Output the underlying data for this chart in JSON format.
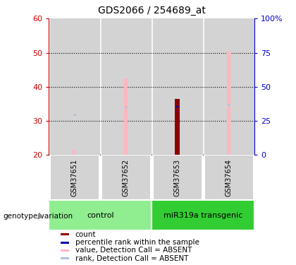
{
  "title": "GDS2066 / 254689_at",
  "samples": [
    "GSM37651",
    "GSM37652",
    "GSM37653",
    "GSM37654"
  ],
  "ylim": [
    20,
    60
  ],
  "y_ticks_left": [
    20,
    30,
    40,
    50,
    60
  ],
  "y_ticks_right": [
    0,
    25,
    50,
    75,
    100
  ],
  "left_axis_color": "#cc0000",
  "right_axis_color": "#0000cc",
  "bars": {
    "GSM37651": {
      "value_absent": 21.5,
      "rank_absent_pct": 29.5,
      "count": null,
      "percentile_pct": null
    },
    "GSM37652": {
      "value_absent": 42.5,
      "rank_absent_pct": 35.0,
      "count": null,
      "percentile_pct": null
    },
    "GSM37653": {
      "value_absent": 36.5,
      "rank_absent_pct": 35.5,
      "count": 36.5,
      "percentile_pct": 35.5
    },
    "GSM37654": {
      "value_absent": 50.5,
      "rank_absent_pct": 37.0,
      "count": null,
      "percentile_pct": null
    }
  },
  "colors": {
    "value_absent": "#ffb6c1",
    "rank_absent": "#b0c4de",
    "count": "#8b0000",
    "percentile": "#0000aa"
  },
  "legend": [
    {
      "label": "count",
      "color": "#8b0000"
    },
    {
      "label": "percentile rank within the sample",
      "color": "#0000aa"
    },
    {
      "label": "value, Detection Call = ABSENT",
      "color": "#ffb6c1"
    },
    {
      "label": "rank, Detection Call = ABSENT",
      "color": "#b0c4de"
    }
  ],
  "xlabel_group": "genotype/variation",
  "sample_area_color": "#d3d3d3",
  "group_control_color": "#90ee90",
  "group_transgenic_color": "#32cd32",
  "x_positions": [
    0,
    1,
    2,
    3
  ]
}
